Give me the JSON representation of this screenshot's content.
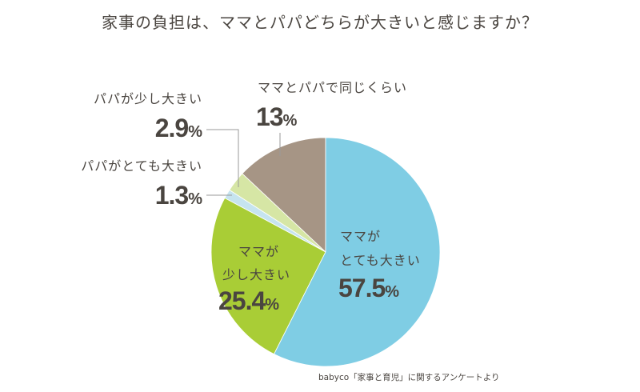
{
  "chart_data": {
    "type": "pie",
    "title": "家事の負担は、ママとパパどちらが大きいと感じますか？",
    "start": "12 o'clock, clockwise",
    "slices": [
      {
        "label": "ママがとても大きい",
        "label_lines": [
          "ママが",
          "とても大きい"
        ],
        "value": 57.5,
        "display": "57.5",
        "color": "#7fcde4"
      },
      {
        "label": "ママが少し大きい",
        "label_lines": [
          "ママが",
          "少し大きい"
        ],
        "value": 25.4,
        "display": "25.4",
        "color": "#a9cd36"
      },
      {
        "label": "パパがとても大きい",
        "value": 1.3,
        "display": "1.3",
        "color": "#c6e4ef"
      },
      {
        "label": "パパが少し大きい",
        "value": 2.9,
        "display": "2.9",
        "color": "#d6e6a5"
      },
      {
        "label": "ママとパパで同じくらい",
        "value": 13,
        "display": "13",
        "color": "#a69585"
      }
    ],
    "unit": "%",
    "source": "babyco「家事と育児」に関するアンケートより"
  }
}
